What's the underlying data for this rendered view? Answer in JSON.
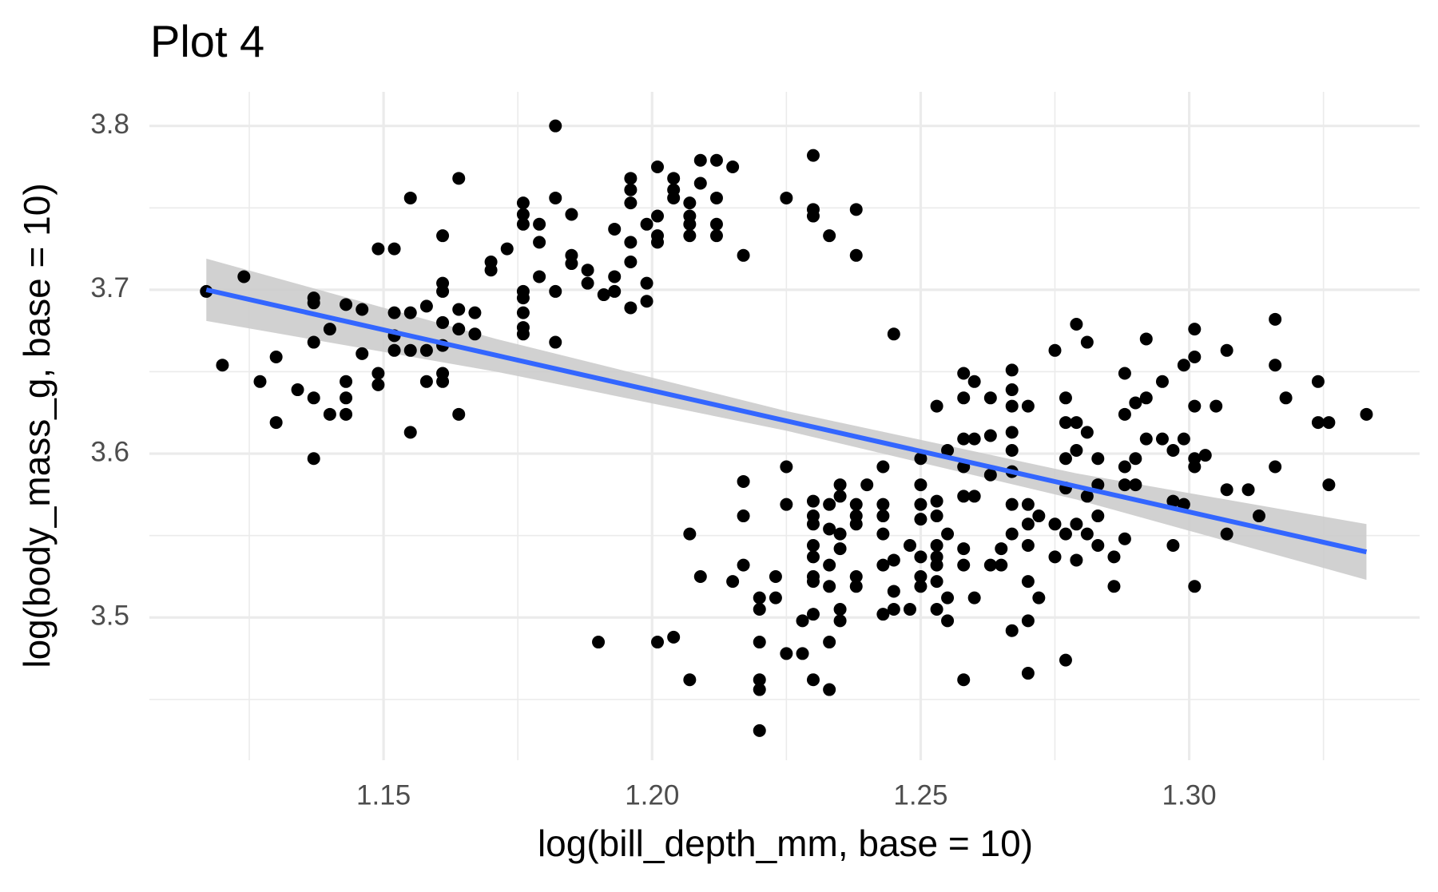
{
  "chart_data": {
    "type": "scatter",
    "title": "Plot 4",
    "x_label": "log(bill_depth_mm, base = 10)",
    "y_label": "log(body_mass_g, base = 10)",
    "xlim": [
      1.1064,
      1.3429
    ],
    "ylim": [
      3.4129,
      3.8208
    ],
    "xticks": [
      {
        "value": 1.15,
        "label": "1.15"
      },
      {
        "value": 1.2,
        "label": "1.20"
      },
      {
        "value": 1.25,
        "label": "1.25"
      },
      {
        "value": 1.3,
        "label": "1.30"
      }
    ],
    "yticks": [
      3.5,
      3.6,
      3.7,
      3.8
    ],
    "xminor": [
      1.125,
      1.175,
      1.225,
      1.275,
      1.325
    ],
    "yminor": [
      3.45,
      3.55,
      3.65,
      3.75
    ],
    "grid": true,
    "point_color": "#000000",
    "fit": {
      "color": "#3366ff",
      "band_color": "#cccccc",
      "x": [
        1.117,
        1.171,
        1.225,
        1.279,
        1.333
      ],
      "y": [
        3.7,
        3.66,
        3.62,
        3.58,
        3.54
      ],
      "lower": [
        3.681,
        3.65,
        3.614,
        3.572,
        3.523
      ],
      "upper": [
        3.719,
        3.67,
        3.626,
        3.588,
        3.557
      ]
    },
    "x": [
      1.117,
      1.124,
      1.12,
      1.127,
      1.13,
      1.13,
      1.134,
      1.137,
      1.137,
      1.137,
      1.137,
      1.137,
      1.14,
      1.14,
      1.143,
      1.143,
      1.143,
      1.143,
      1.146,
      1.146,
      1.149,
      1.149,
      1.149,
      1.152,
      1.152,
      1.152,
      1.152,
      1.155,
      1.155,
      1.155,
      1.155,
      1.158,
      1.158,
      1.158,
      1.161,
      1.161,
      1.161,
      1.161,
      1.161,
      1.161,
      1.161,
      1.164,
      1.164,
      1.164,
      1.164,
      1.167,
      1.167,
      1.17,
      1.17,
      1.173,
      1.176,
      1.176,
      1.176,
      1.176,
      1.176,
      1.176,
      1.176,
      1.176,
      1.179,
      1.179,
      1.179,
      1.182,
      1.182,
      1.182,
      1.182,
      1.185,
      1.185,
      1.185,
      1.188,
      1.188,
      1.191,
      1.193,
      1.193,
      1.193,
      1.196,
      1.196,
      1.196,
      1.196,
      1.196,
      1.196,
      1.199,
      1.199,
      1.199,
      1.201,
      1.201,
      1.201,
      1.201,
      1.204,
      1.204,
      1.204,
      1.207,
      1.207,
      1.207,
      1.207,
      1.209,
      1.209,
      1.212,
      1.212,
      1.212,
      1.212,
      1.215,
      1.217,
      1.225,
      1.23,
      1.23,
      1.23,
      1.233,
      1.238,
      1.238,
      1.245,
      1.19,
      1.201,
      1.204,
      1.207,
      1.207,
      1.209,
      1.215,
      1.217,
      1.217,
      1.217,
      1.22,
      1.22,
      1.22,
      1.22,
      1.22,
      1.22,
      1.223,
      1.223,
      1.225,
      1.225,
      1.225,
      1.228,
      1.228,
      1.23,
      1.23,
      1.23,
      1.23,
      1.23,
      1.23,
      1.23,
      1.23,
      1.23,
      1.233,
      1.233,
      1.233,
      1.233,
      1.233,
      1.233,
      1.235,
      1.235,
      1.235,
      1.235,
      1.235,
      1.235,
      1.238,
      1.238,
      1.238,
      1.238,
      1.238,
      1.24,
      1.243,
      1.243,
      1.243,
      1.243,
      1.243,
      1.243,
      1.245,
      1.245,
      1.245,
      1.248,
      1.248,
      1.25,
      1.25,
      1.25,
      1.25,
      1.25,
      1.25,
      1.25,
      1.253,
      1.253,
      1.253,
      1.253,
      1.253,
      1.253,
      1.253,
      1.253,
      1.255,
      1.255,
      1.255,
      1.255,
      1.258,
      1.258,
      1.258,
      1.258,
      1.258,
      1.258,
      1.258,
      1.258,
      1.26,
      1.26,
      1.26,
      1.26,
      1.263,
      1.263,
      1.263,
      1.263,
      1.265,
      1.265,
      1.267,
      1.267,
      1.267,
      1.267,
      1.267,
      1.267,
      1.267,
      1.267,
      1.267,
      1.27,
      1.27,
      1.27,
      1.27,
      1.27,
      1.27,
      1.27,
      1.272,
      1.272,
      1.275,
      1.275,
      1.275,
      1.277,
      1.277,
      1.277,
      1.277,
      1.277,
      1.277,
      1.279,
      1.279,
      1.279,
      1.279,
      1.279,
      1.281,
      1.281,
      1.281,
      1.281,
      1.283,
      1.283,
      1.283,
      1.283,
      1.286,
      1.286,
      1.288,
      1.288,
      1.288,
      1.288,
      1.288,
      1.29,
      1.29,
      1.29,
      1.292,
      1.292,
      1.292,
      1.295,
      1.295,
      1.297,
      1.297,
      1.297,
      1.299,
      1.299,
      1.299,
      1.301,
      1.301,
      1.301,
      1.301,
      1.301,
      1.301,
      1.303,
      1.305,
      1.307,
      1.307,
      1.307,
      1.311,
      1.313,
      1.316,
      1.316,
      1.316,
      1.318,
      1.324,
      1.324,
      1.326,
      1.326,
      1.333
    ],
    "values": [
      3.699,
      3.708,
      3.654,
      3.644,
      3.659,
      3.619,
      3.639,
      3.695,
      3.692,
      3.668,
      3.634,
      3.597,
      3.676,
      3.624,
      3.691,
      3.644,
      3.634,
      3.624,
      3.688,
      3.661,
      3.725,
      3.649,
      3.642,
      3.725,
      3.686,
      3.672,
      3.663,
      3.756,
      3.686,
      3.663,
      3.613,
      3.69,
      3.663,
      3.644,
      3.733,
      3.704,
      3.699,
      3.68,
      3.666,
      3.649,
      3.644,
      3.768,
      3.688,
      3.676,
      3.624,
      3.686,
      3.673,
      3.717,
      3.712,
      3.725,
      3.753,
      3.746,
      3.74,
      3.699,
      3.695,
      3.686,
      3.677,
      3.673,
      3.74,
      3.729,
      3.708,
      3.8,
      3.756,
      3.699,
      3.668,
      3.746,
      3.721,
      3.716,
      3.712,
      3.704,
      3.697,
      3.737,
      3.708,
      3.699,
      3.768,
      3.761,
      3.753,
      3.729,
      3.717,
      3.689,
      3.74,
      3.704,
      3.693,
      3.775,
      3.745,
      3.733,
      3.729,
      3.768,
      3.761,
      3.756,
      3.753,
      3.745,
      3.74,
      3.733,
      3.779,
      3.765,
      3.779,
      3.756,
      3.74,
      3.733,
      3.775,
      3.721,
      3.756,
      3.782,
      3.749,
      3.745,
      3.733,
      3.749,
      3.721,
      3.673,
      3.485,
      3.485,
      3.488,
      3.551,
      3.462,
      3.525,
      3.522,
      3.583,
      3.562,
      3.532,
      3.512,
      3.505,
      3.485,
      3.462,
      3.456,
      3.431,
      3.525,
      3.512,
      3.592,
      3.569,
      3.478,
      3.478,
      3.498,
      3.571,
      3.562,
      3.557,
      3.544,
      3.537,
      3.525,
      3.522,
      3.502,
      3.462,
      3.569,
      3.554,
      3.532,
      3.519,
      3.485,
      3.456,
      3.581,
      3.574,
      3.551,
      3.542,
      3.505,
      3.498,
      3.569,
      3.562,
      3.557,
      3.525,
      3.519,
      3.581,
      3.592,
      3.569,
      3.562,
      3.551,
      3.532,
      3.502,
      3.535,
      3.516,
      3.505,
      3.544,
      3.505,
      3.597,
      3.581,
      3.569,
      3.56,
      3.537,
      3.525,
      3.519,
      3.629,
      3.571,
      3.562,
      3.544,
      3.537,
      3.532,
      3.522,
      3.505,
      3.602,
      3.551,
      3.512,
      3.498,
      3.649,
      3.634,
      3.609,
      3.592,
      3.574,
      3.542,
      3.532,
      3.462,
      3.644,
      3.609,
      3.574,
      3.512,
      3.634,
      3.611,
      3.587,
      3.532,
      3.542,
      3.532,
      3.651,
      3.639,
      3.629,
      3.613,
      3.602,
      3.589,
      3.569,
      3.551,
      3.492,
      3.629,
      3.569,
      3.557,
      3.544,
      3.522,
      3.498,
      3.466,
      3.562,
      3.512,
      3.663,
      3.557,
      3.537,
      3.634,
      3.619,
      3.597,
      3.579,
      3.551,
      3.474,
      3.679,
      3.619,
      3.602,
      3.557,
      3.535,
      3.668,
      3.613,
      3.574,
      3.551,
      3.597,
      3.581,
      3.562,
      3.544,
      3.537,
      3.519,
      3.649,
      3.624,
      3.592,
      3.581,
      3.548,
      3.631,
      3.597,
      3.581,
      3.67,
      3.634,
      3.609,
      3.644,
      3.609,
      3.602,
      3.571,
      3.544,
      3.654,
      3.609,
      3.569,
      3.676,
      3.659,
      3.629,
      3.597,
      3.592,
      3.519,
      3.599,
      3.629,
      3.663,
      3.578,
      3.551,
      3.578,
      3.562,
      3.682,
      3.654,
      3.592,
      3.634,
      3.644,
      3.619,
      3.619,
      3.581,
      3.624
    ]
  }
}
